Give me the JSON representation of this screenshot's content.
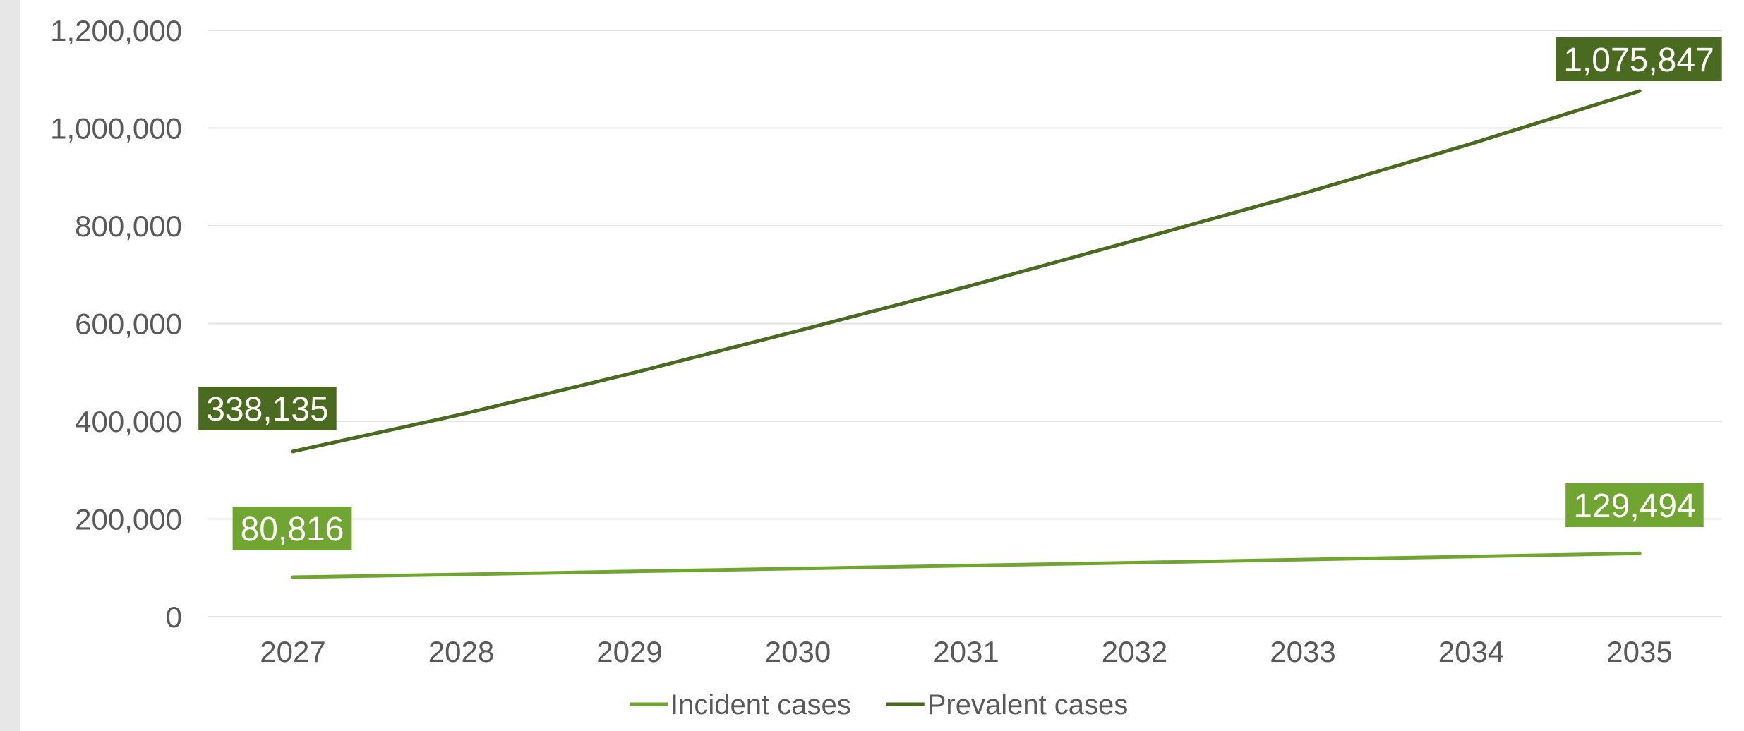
{
  "chart_data": {
    "type": "line",
    "categories": [
      "2027",
      "2028",
      "2029",
      "2030",
      "2031",
      "2032",
      "2033",
      "2034",
      "2035"
    ],
    "series": [
      {
        "name": "Incident cases",
        "color": "#70a532",
        "values": [
          80816,
          86500,
          92500,
          98500,
          104500,
          110500,
          116800,
          123000,
          129494
        ],
        "data_labels": [
          {
            "index": 0,
            "text": "80,816"
          },
          {
            "index": 8,
            "text": "129,494"
          }
        ]
      },
      {
        "name": "Prevalent cases",
        "color": "#4a6b1f",
        "values": [
          338135,
          414000,
          497000,
          585000,
          675000,
          770000,
          866000,
          968000,
          1075847
        ],
        "data_labels": [
          {
            "index": 0,
            "text": "338,135"
          },
          {
            "index": 8,
            "text": "1,075,847"
          }
        ]
      }
    ],
    "y_ticks": [
      "0",
      "200,000",
      "400,000",
      "600,000",
      "800,000",
      "1,000,000",
      "1,200,000"
    ],
    "ylim": [
      0,
      1200000
    ],
    "grid": true,
    "legend_position": "bottom",
    "title": "",
    "xlabel": "",
    "ylabel": ""
  }
}
